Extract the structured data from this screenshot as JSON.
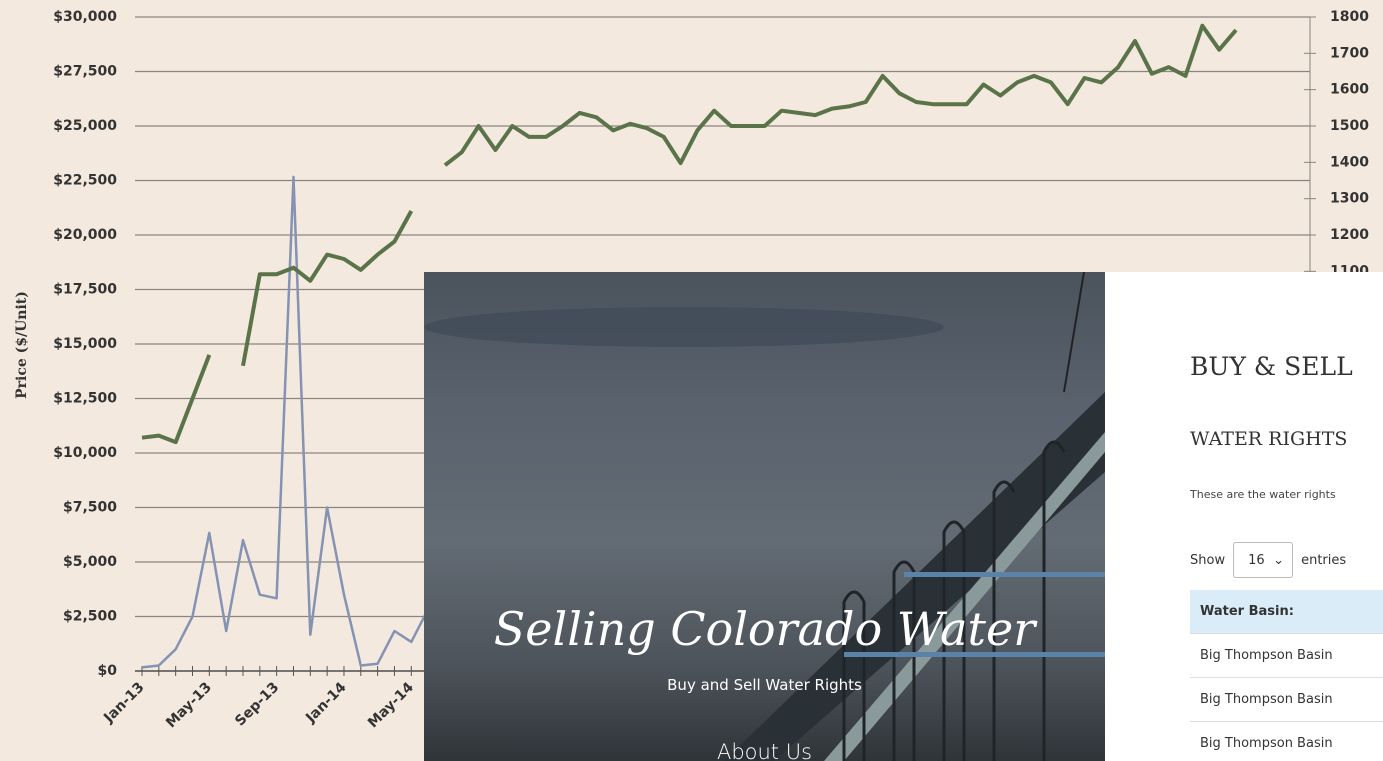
{
  "chart_data": {
    "type": "line",
    "y_label": "Price ($/Unit)",
    "categories": [
      "Jan-13",
      null,
      null,
      null,
      "May-13",
      null,
      null,
      null,
      "Sep-13",
      null,
      null,
      null,
      "Jan-14",
      null,
      null,
      null,
      "May-14",
      null,
      null,
      null,
      null,
      null,
      null,
      null,
      null,
      null,
      null,
      null,
      null,
      null,
      null,
      null,
      null,
      null,
      null,
      null,
      null,
      null,
      null,
      null,
      null,
      null,
      null,
      null,
      null,
      null,
      null,
      null,
      null,
      null,
      null,
      null,
      null,
      null,
      null,
      null,
      null,
      null,
      null,
      null,
      null,
      null,
      null,
      null,
      null,
      null
    ],
    "series": [
      {
        "color": "#5b7349",
        "values": [
          10700,
          10800,
          10500,
          12500,
          14500,
          null,
          14000,
          18200,
          18200,
          18500,
          17900,
          19100,
          18900,
          18400,
          19100,
          19700,
          21100,
          null,
          23200,
          23800,
          25000,
          23900,
          25000,
          24500,
          24500,
          25000,
          25600,
          25400,
          24800,
          25100,
          24900,
          24500,
          23300,
          24800,
          25700,
          25000,
          25000,
          25000,
          25700,
          25600,
          25500,
          25800,
          25900,
          26100,
          27300,
          26500,
          26100,
          26000,
          26000,
          26000,
          26900,
          26400,
          27000,
          27300,
          27000,
          26000,
          27200,
          27000,
          27700,
          28900,
          27400,
          27700,
          27300,
          29600,
          28500,
          29400
        ]
      },
      {
        "color": "#8593b3",
        "axis": "y2",
        "values": [
          10,
          15,
          60,
          150,
          380,
          110,
          360,
          210,
          200,
          1360,
          100,
          450,
          210,
          15,
          20,
          110,
          80,
          170,
          null,
          null,
          null,
          null,
          null,
          null,
          null,
          null,
          null,
          null,
          null,
          null,
          null,
          null,
          null,
          null,
          null,
          null,
          null,
          null,
          null,
          null,
          null,
          null,
          null,
          null,
          null,
          null,
          null,
          null,
          null,
          null,
          null,
          null,
          null,
          null,
          null,
          null,
          null,
          null,
          null,
          null,
          null,
          null,
          null,
          null,
          null,
          null
        ]
      }
    ],
    "ylim": [
      0,
      30000
    ],
    "yticks": [
      {
        "value": 0,
        "label": "$0"
      },
      {
        "value": 2500,
        "label": "$2,500"
      },
      {
        "value": 5000,
        "label": "$5,000"
      },
      {
        "value": 7500,
        "label": "$7,500"
      },
      {
        "value": 10000,
        "label": "$10,000"
      },
      {
        "value": 12500,
        "label": "$12,500"
      },
      {
        "value": 15000,
        "label": "$15,000"
      },
      {
        "value": 17500,
        "label": "$17,500"
      },
      {
        "value": 20000,
        "label": "$20,000"
      },
      {
        "value": 22500,
        "label": "$22,500"
      },
      {
        "value": 25000,
        "label": "$25,000"
      },
      {
        "value": 27500,
        "label": "$27,500"
      },
      {
        "value": 30000,
        "label": "$30,000"
      }
    ],
    "y2lim": [
      0,
      1800
    ],
    "y2ticks": [
      1100,
      1200,
      1300,
      1400,
      1500,
      1600,
      1700,
      1800
    ],
    "grid": true
  },
  "hero": {
    "title": "Selling Colorado Water",
    "subtitle": "Buy and Sell Water Rights",
    "nav": "About Us"
  },
  "panel": {
    "heading": "BUY & SELL",
    "subheading": "WATER RIGHTS",
    "intro": "These are the water rights",
    "show": "Show",
    "entries_value": "16",
    "entries": "entries",
    "table": {
      "header": "Water Basin:",
      "rows": [
        "Big Thompson Basin",
        "Big Thompson Basin",
        "Big Thompson Basin"
      ]
    }
  }
}
